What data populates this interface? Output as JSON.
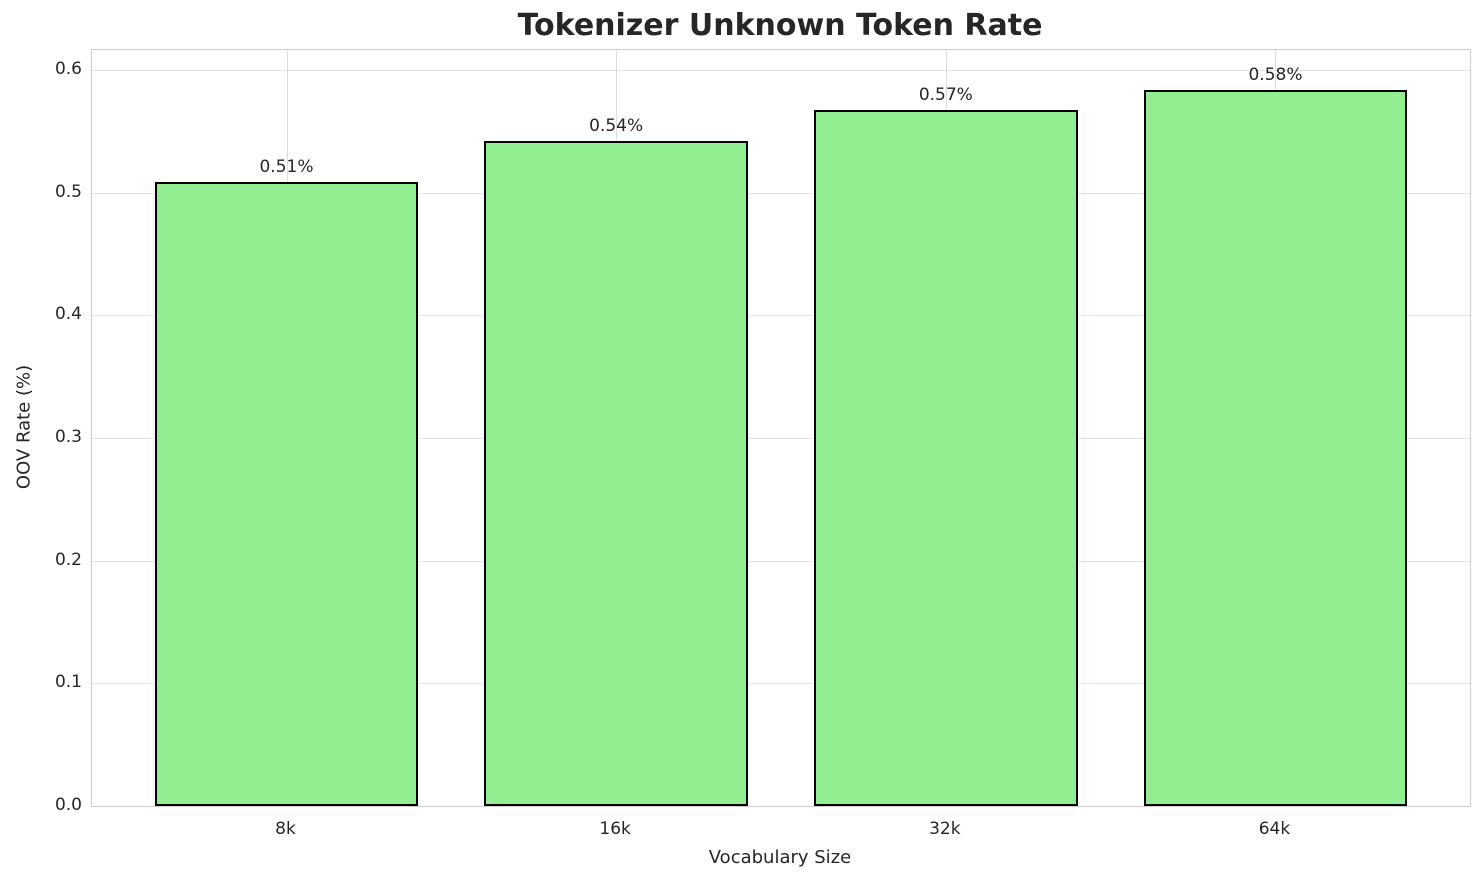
{
  "chart_data": {
    "type": "bar",
    "title": "Tokenizer Unknown Token Rate",
    "xlabel": "Vocabulary Size",
    "ylabel": "OOV Rate (%)",
    "categories": [
      "8k",
      "16k",
      "32k",
      "64k"
    ],
    "values": [
      0.509,
      0.542,
      0.567,
      0.584
    ],
    "bar_labels": [
      "0.51%",
      "0.54%",
      "0.57%",
      "0.58%"
    ],
    "ylim": [
      0,
      0.6163
    ],
    "xlim": [
      -0.59,
      3.59
    ],
    "yticks": [
      0.0,
      0.1,
      0.2,
      0.3,
      0.4,
      0.5,
      0.6
    ],
    "ytick_labels": [
      "0.0",
      "0.1",
      "0.2",
      "0.3",
      "0.4",
      "0.5",
      "0.6"
    ],
    "bar_width": 0.8,
    "bar_color": "#90EE90",
    "bar_edge_color": "#000000",
    "grid": true,
    "grid_color_h": "#e6e6e6",
    "grid_color_v": "#dddddd",
    "spine_color": "#cccccc",
    "text_color": "#262626",
    "legend": "none"
  }
}
